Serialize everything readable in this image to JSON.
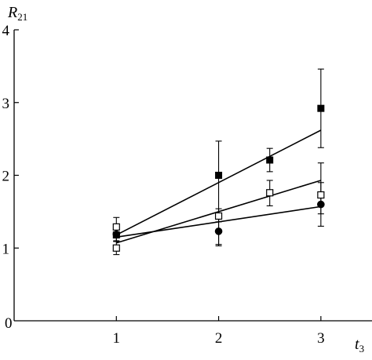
{
  "chart_data": {
    "type": "scatter",
    "title": "",
    "xlabel": "t",
    "xlabel_sub": "3",
    "ylabel": "R",
    "ylabel_sub": "21",
    "xlim": [
      0,
      3.5
    ],
    "ylim": [
      0,
      4
    ],
    "xticks": [
      1,
      2,
      3
    ],
    "xtick_labels": [
      "1",
      "2",
      "3"
    ],
    "yticks": [
      1,
      2,
      3,
      4
    ],
    "ytick_labels": [
      "1",
      "2",
      "3",
      "4"
    ],
    "origin_label": "0",
    "grid": false,
    "legend": null,
    "series": [
      {
        "marker": "filled-square",
        "points": [
          {
            "x": 1,
            "y": 1.18,
            "err_low": 1.1,
            "err_high": 1.26
          },
          {
            "x": 2,
            "y": 2.0,
            "err_low": 1.05,
            "err_high": 2.47
          },
          {
            "x": 2.5,
            "y": 2.21,
            "err_low": 2.05,
            "err_high": 2.37
          },
          {
            "x": 3,
            "y": 2.92,
            "err_low": 2.38,
            "err_high": 3.46
          }
        ],
        "fit": {
          "x0": 1,
          "y0": 1.18,
          "x1": 3,
          "y1": 2.62
        }
      },
      {
        "marker": "open-square",
        "points": [
          {
            "x": 1,
            "y": 1.29,
            "err_low": 1.18,
            "err_high": 1.42
          },
          {
            "x": 1,
            "y": 1.0,
            "err_low": 0.91,
            "err_high": 1.09
          },
          {
            "x": 2,
            "y": 1.44,
            "err_low": 1.36,
            "err_high": 1.54
          },
          {
            "x": 2.5,
            "y": 1.76,
            "err_low": 1.58,
            "err_high": 1.93
          },
          {
            "x": 3,
            "y": 1.73,
            "err_low": 1.47,
            "err_high": 2.17
          }
        ],
        "fit": {
          "x0": 1,
          "y0": 1.07,
          "x1": 3,
          "y1": 1.93
        }
      },
      {
        "marker": "filled-circle",
        "points": [
          {
            "x": 1,
            "y": 1.19,
            "err_low": 1.09,
            "err_high": 1.28
          },
          {
            "x": 2,
            "y": 1.23,
            "err_low": 1.03,
            "err_high": 1.43
          },
          {
            "x": 3,
            "y": 1.6,
            "err_low": 1.3,
            "err_high": 1.9
          }
        ],
        "fit": {
          "x0": 1,
          "y0": 1.15,
          "x1": 3,
          "y1": 1.57
        }
      }
    ]
  }
}
